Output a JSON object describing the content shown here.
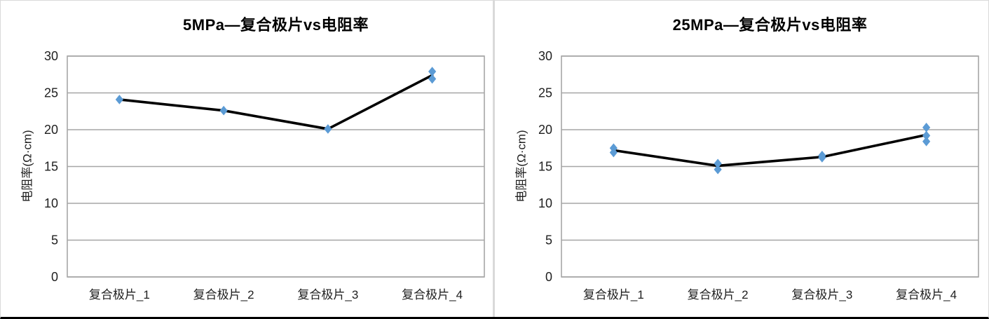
{
  "page": {
    "background": "#ffffff",
    "panel_border_color": "#d9d9d9",
    "divider_color": "#d9d9d9",
    "bottom_bar_color": "#000000"
  },
  "chart_data": [
    {
      "type": "scatter",
      "title": "5MPa—复合极片vs电阻率",
      "xlabel": "",
      "ylabel": "电阻率(Ω·cm)",
      "categories": [
        "复合极片_1",
        "复合极片_2",
        "复合极片_3",
        "复合极片_4"
      ],
      "ylim": [
        0,
        30
      ],
      "yticks": [
        0,
        5,
        10,
        15,
        20,
        25,
        30
      ],
      "grid": true,
      "legend_position": "none",
      "grid_color": "#a6a6a6",
      "series": [
        {
          "name": "mean-line",
          "type": "line",
          "color": "#000000",
          "values": [
            24.1,
            22.6,
            20.1,
            27.4
          ]
        },
        {
          "name": "measurements",
          "type": "scatter",
          "marker": "diamond",
          "color": "#5b9bd5",
          "points": [
            [
              24.1
            ],
            [
              22.6
            ],
            [
              20.1
            ],
            [
              27.9,
              26.9
            ]
          ]
        }
      ]
    },
    {
      "type": "scatter",
      "title": "25MPa—复合极片vs电阻率",
      "xlabel": "",
      "ylabel": "电阻率(Ω·cm)",
      "categories": [
        "复合极片_1",
        "复合极片_2",
        "复合极片_3",
        "复合极片_4"
      ],
      "ylim": [
        0,
        30
      ],
      "yticks": [
        0,
        5,
        10,
        15,
        20,
        25,
        30
      ],
      "grid": true,
      "legend_position": "none",
      "grid_color": "#a6a6a6",
      "series": [
        {
          "name": "mean-line",
          "type": "line",
          "color": "#000000",
          "values": [
            17.2,
            15.1,
            16.3,
            19.3
          ]
        },
        {
          "name": "measurements",
          "type": "scatter",
          "marker": "diamond",
          "color": "#5b9bd5",
          "points": [
            [
              17.5,
              16.9
            ],
            [
              15.4,
              14.6
            ],
            [
              16.5,
              16.2
            ],
            [
              20.3,
              19.2,
              18.4
            ]
          ]
        }
      ]
    }
  ]
}
